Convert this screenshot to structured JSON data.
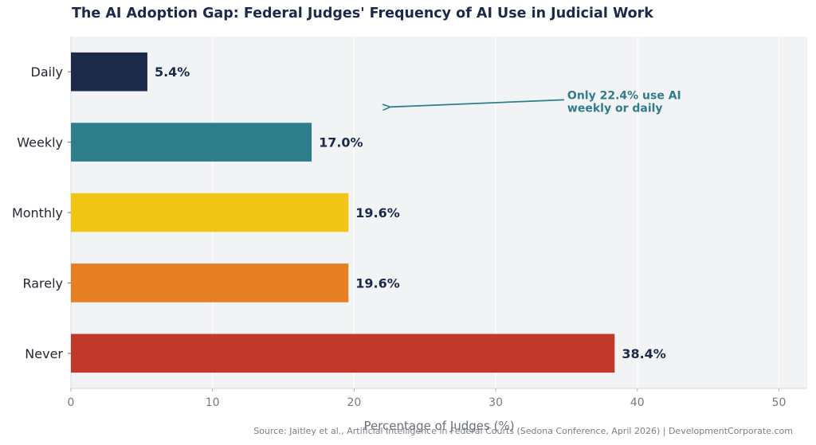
{
  "chart_data": {
    "type": "bar",
    "orientation": "horizontal",
    "title": "The AI Adoption Gap: Federal Judges' Frequency of AI Use in Judicial Work",
    "categories": [
      "Daily",
      "Weekly",
      "Monthly",
      "Rarely",
      "Never"
    ],
    "values": [
      5.4,
      17.0,
      19.6,
      19.6,
      38.4
    ],
    "value_labels": [
      "5.4%",
      "17.0%",
      "19.6%",
      "19.6%",
      "38.4%"
    ],
    "colors": [
      "#1c2a4a",
      "#2e7d8a",
      "#f0c514",
      "#e67e22",
      "#c0392b"
    ],
    "xlabel": "Percentage of Judges (%)",
    "ylabel": "",
    "xlim": [
      0,
      52
    ],
    "xticks": [
      0,
      10,
      20,
      30,
      40,
      50
    ],
    "grid": true,
    "annotation": {
      "text_lines": [
        "Only 22.4% use AI",
        "weekly or daily"
      ],
      "text_at": [
        35,
        "between Daily and Weekly"
      ],
      "arrow_to": [
        22.5,
        "between Daily and Weekly"
      ],
      "color": "#2e7d8a"
    },
    "source": "Source: Jaitley et al., Artificial Intelligence in Federal Courts (Sedona Conference, April 2026) | DevelopmentCorporate.com"
  }
}
